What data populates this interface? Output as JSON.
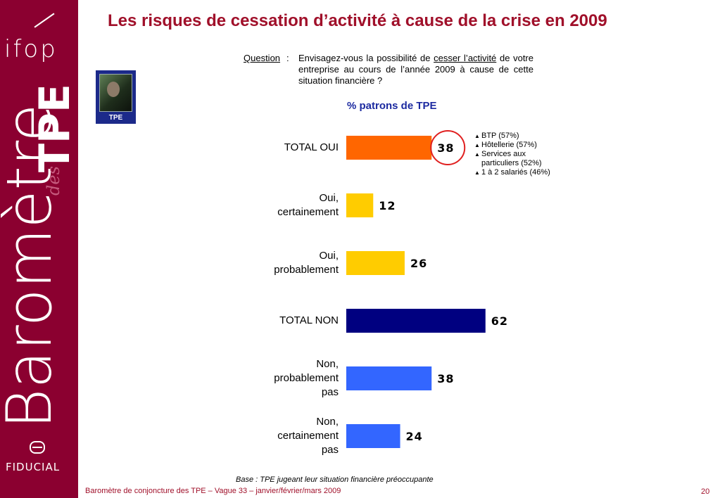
{
  "brand": {
    "ifop": "ifop",
    "barometre": "Baromètre",
    "des": "des",
    "tpe": "TPE",
    "fiducial": "FIDUCIAL",
    "sidebar_color": "#8b0030"
  },
  "title": "Les risques de cessation d’activité à cause de la crise en 2009",
  "question": {
    "label": "Question",
    "colon": ":",
    "text_before": "Envisagez-vous la possibilité de ",
    "text_underlined": "cesser l’activité",
    "text_after": " de votre entreprise au cours de l’année 2009 à cause de cette situation financière ?"
  },
  "badge": {
    "label": "TPE"
  },
  "chart_data": {
    "type": "bar",
    "orientation": "horizontal",
    "title": "% patrons de TPE",
    "categories": [
      "TOTAL OUI",
      "Oui, certainement",
      "Oui, probablement",
      "TOTAL NON",
      "Non, probablement pas",
      "Non, certainement pas"
    ],
    "category_lines": [
      [
        "TOTAL OUI"
      ],
      [
        "Oui,",
        "certainement"
      ],
      [
        "Oui,",
        "probablement"
      ],
      [
        "TOTAL NON"
      ],
      [
        "Non,",
        "probablement",
        "pas"
      ],
      [
        "Non,",
        "certainement",
        "pas"
      ]
    ],
    "values": [
      38,
      12,
      26,
      62,
      38,
      24
    ],
    "colors": [
      "#ff6600",
      "#ffcc00",
      "#ffcc00",
      "#000080",
      "#3366ff",
      "#3366ff"
    ],
    "highlight_index": 0,
    "highlight_color": "#e02020",
    "value_max": 100
  },
  "annotations": [
    {
      "icon": "up-triangle-icon",
      "text": "BTP (57%)"
    },
    {
      "icon": "up-triangle-icon",
      "text": "Hôtellerie (57%)"
    },
    {
      "icon": "up-triangle-icon",
      "text": "Services aux"
    },
    {
      "icon": "",
      "text": "particuliers (52%)"
    },
    {
      "icon": "up-triangle-icon",
      "text": "1 à 2 salariés (46%)"
    }
  ],
  "base_note": "Base : TPE jugeant leur situation financière préoccupante",
  "footer": "Baromètre de conjoncture des TPE – Vague 33 – janvier/février/mars 2009",
  "page_number": "20"
}
